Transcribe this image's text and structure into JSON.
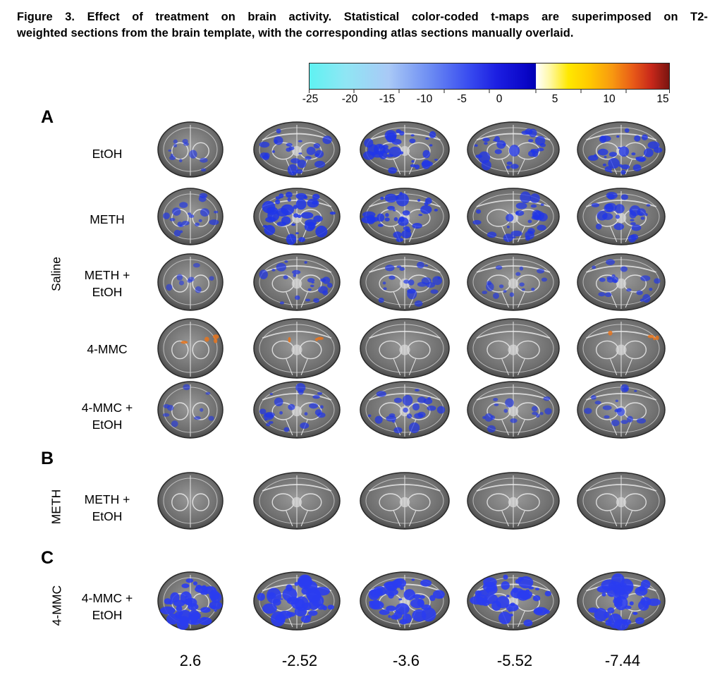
{
  "caption": {
    "line1": "Figure 3. Effect of treatment on brain activity. Statistical color-coded t-maps are superimposed on T2-",
    "line2": "weighted sections from the brain template, with the corresponding atlas sections manually overlaid."
  },
  "colorbar": {
    "range": [
      -25,
      15
    ],
    "ticks": [
      "-25",
      "-20",
      "-15",
      "-10",
      "-5",
      "0",
      "5",
      "10",
      "15"
    ],
    "negative_colors": [
      "#5ff2f2",
      "#a9c9f6",
      "#3a4ef0",
      "#0000b4"
    ],
    "positive_colors": [
      "#ffffff",
      "#ffe800",
      "#f89a10",
      "#c8281a",
      "#7a1410"
    ]
  },
  "panels": [
    {
      "letter": "A",
      "group": "Saline",
      "rows": [
        "EtOH",
        "METH",
        "METH +\nEtOH",
        "4-MMC",
        "4-MMC +\nEtOH"
      ]
    },
    {
      "letter": "B",
      "group": "METH",
      "rows": [
        "METH +\nEtOH"
      ]
    },
    {
      "letter": "C",
      "group": "4-MMC",
      "rows": [
        "4-MMC +\nEtOH"
      ]
    }
  ],
  "coordinates": [
    "2.6",
    "-2.52",
    "-3.6",
    "-5.52",
    "-7.44"
  ],
  "activation": [
    [
      0.15,
      0.55,
      0.7,
      0.6,
      0.65
    ],
    [
      0.35,
      0.85,
      0.75,
      0.55,
      0.55
    ],
    [
      0.05,
      0.45,
      0.4,
      0.25,
      0.35
    ],
    [
      0.0,
      0.0,
      0.0,
      0.0,
      0.0
    ],
    [
      0.1,
      0.45,
      0.45,
      0.25,
      0.3
    ],
    [
      0.0,
      0.0,
      0.0,
      0.0,
      0.0
    ],
    [
      1.0,
      0.95,
      0.95,
      0.95,
      0.95
    ]
  ],
  "positive_activation": [
    [
      0,
      0,
      0,
      0,
      0
    ],
    [
      0,
      0,
      0,
      0,
      0
    ],
    [
      0,
      0,
      0,
      0,
      0
    ],
    [
      0.3,
      0.1,
      0,
      0,
      0.3
    ],
    [
      0,
      0,
      0,
      0,
      0
    ],
    [
      0,
      0,
      0,
      0,
      0
    ],
    [
      0,
      0,
      0,
      0,
      0
    ]
  ]
}
